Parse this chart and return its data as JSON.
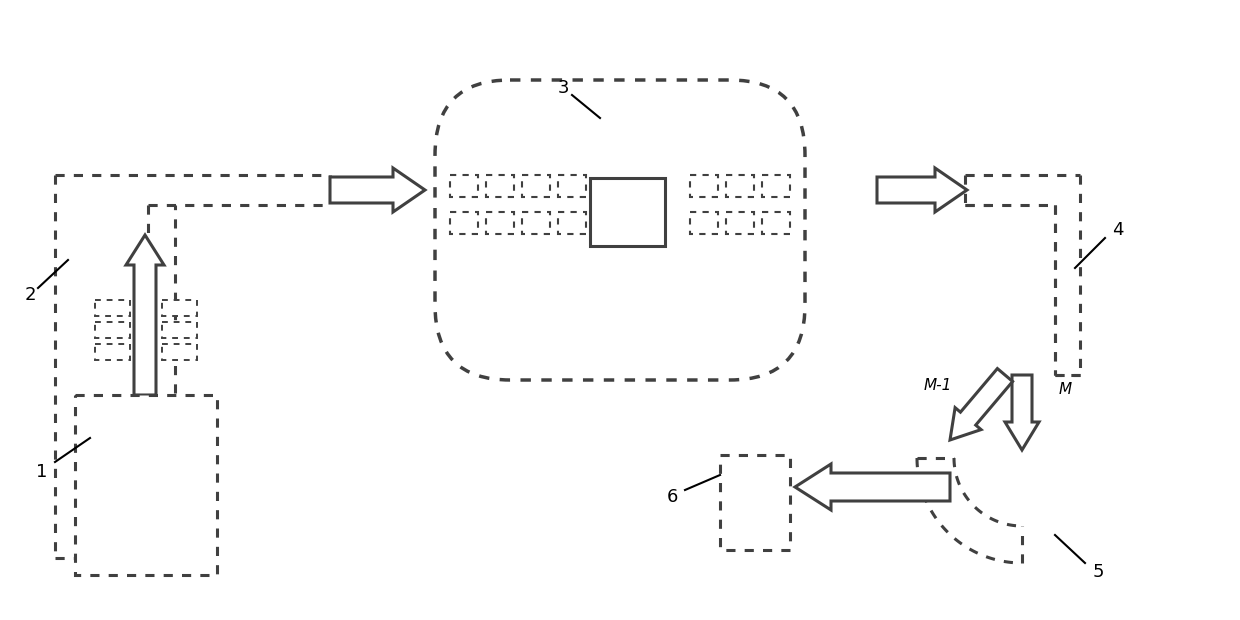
{
  "bg_color": "#ffffff",
  "line_color": "#404040",
  "line_width": 2.2,
  "dot_style": [
    0,
    [
      2,
      2
    ]
  ],
  "label_fontsize": 13,
  "fig_w": 12.4,
  "fig_h": 6.2,
  "dpi": 100
}
